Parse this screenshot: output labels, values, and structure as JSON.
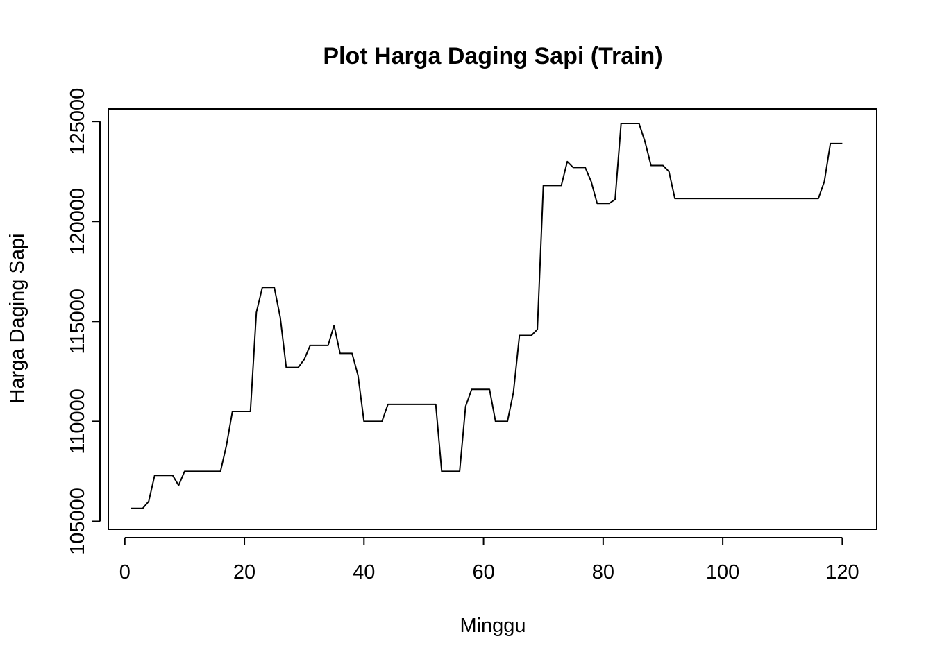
{
  "chart_data": {
    "type": "line",
    "title": "Plot  Harga Daging Sapi (Train)",
    "xlabel": "Minggu",
    "ylabel": "Harga Daging Sapi",
    "xlim": [
      -2.76,
      125.76
    ],
    "ylim": [
      104600,
      125630
    ],
    "x_ticks": [
      0,
      20,
      40,
      60,
      80,
      100,
      120
    ],
    "y_ticks": [
      105000,
      110000,
      115000,
      120000,
      125000
    ],
    "grid": false,
    "legend": "none",
    "color": "#000000",
    "series": [
      {
        "x": [
          1,
          2,
          3,
          4,
          5,
          6,
          7,
          8,
          9,
          10,
          11,
          12,
          13,
          14,
          15,
          16,
          17,
          18,
          19,
          20,
          21,
          22,
          23,
          24,
          25,
          26,
          27,
          28,
          29,
          30,
          31,
          32,
          33,
          34,
          35,
          36,
          37,
          38,
          39,
          40,
          41,
          42,
          43,
          44,
          45,
          46,
          47,
          48,
          49,
          50,
          51,
          52,
          53,
          54,
          55,
          56,
          57,
          58,
          59,
          60,
          61,
          62,
          63,
          64,
          65,
          66,
          67,
          68,
          69,
          70,
          71,
          72,
          73,
          74,
          75,
          76,
          77,
          78,
          79,
          80,
          81,
          82,
          83,
          84,
          85,
          86,
          87,
          88,
          89,
          90,
          91,
          92,
          93,
          94,
          95,
          96,
          97,
          98,
          99,
          100,
          101,
          102,
          103,
          104,
          105,
          106,
          107,
          108,
          109,
          110,
          111,
          112,
          113,
          114,
          115,
          116,
          117,
          118,
          119,
          120
        ],
        "values": [
          105650,
          105650,
          105650,
          106000,
          107300,
          107300,
          107300,
          107300,
          106800,
          107500,
          107500,
          107500,
          107500,
          107500,
          107500,
          107500,
          108800,
          110500,
          110500,
          110500,
          110500,
          115450,
          116700,
          116700,
          116700,
          115200,
          112700,
          112700,
          112700,
          113100,
          113800,
          113800,
          113800,
          113800,
          114800,
          113400,
          113400,
          113400,
          112300,
          110000,
          110000,
          110000,
          110000,
          110850,
          110850,
          110850,
          110850,
          110850,
          110850,
          110850,
          110850,
          110850,
          107500,
          107500,
          107500,
          107500,
          110750,
          111600,
          111600,
          111600,
          111600,
          110000,
          110000,
          110000,
          111450,
          114300,
          114300,
          114300,
          114600,
          121800,
          121800,
          121800,
          121800,
          123000,
          122700,
          122700,
          122700,
          122000,
          120900,
          120900,
          120900,
          121100,
          124900,
          124900,
          124900,
          124900,
          124000,
          122800,
          122800,
          122800,
          122500,
          121150,
          121150,
          121150,
          121150,
          121150,
          121150,
          121150,
          121150,
          121150,
          121150,
          121150,
          121150,
          121150,
          121150,
          121150,
          121150,
          121150,
          121150,
          121150,
          121150,
          121150,
          121150,
          121150,
          121150,
          121150,
          122000,
          123900,
          123900,
          123900
        ]
      }
    ]
  }
}
